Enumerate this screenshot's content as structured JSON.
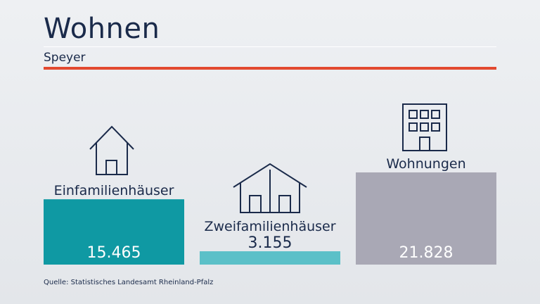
{
  "header": {
    "title": "Wohnen",
    "subtitle": "Speyer",
    "accent_color": "#e2492f"
  },
  "chart_data": {
    "type": "bar",
    "categories": [
      "Einfamilienhäuser",
      "Zweifamilienhäuser",
      "Wohnungen"
    ],
    "values": [
      15465,
      3155,
      21828
    ],
    "value_labels": [
      "15.465",
      "3.155",
      "21.828"
    ],
    "icons": [
      "house-icon",
      "double-house-icon",
      "apartment-building-icon"
    ],
    "colors": [
      "#0f99a3",
      "#5bc0c8",
      "#a9a8b5"
    ],
    "ylim": [
      0,
      21828
    ],
    "grid": false
  },
  "footer": {
    "source": "Quelle: Statistisches Landesamt Rheinland-Pfalz"
  }
}
